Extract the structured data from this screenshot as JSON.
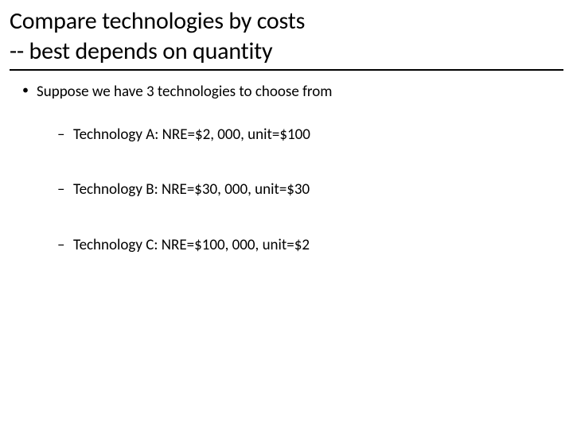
{
  "slide": {
    "title_line1": "Compare technologies by costs",
    "title_line2": "-- best depends on quantity",
    "bullet_main": "Suppose we have 3 technologies to choose from",
    "tech_items": [
      {
        "text": "Technology A:  NRE=$2, 000,   unit=$100"
      },
      {
        "text": "Technology B:  NRE=$30, 000,  unit=$30"
      },
      {
        "text": "Technology C:  NRE=$100, 000, unit=$2"
      }
    ]
  },
  "colors": {
    "background": "#ffffff",
    "text": "#000000",
    "divider": "#000000"
  },
  "typography": {
    "title_fontsize": 30,
    "body_fontsize": 19,
    "font_family": "Calibri"
  }
}
